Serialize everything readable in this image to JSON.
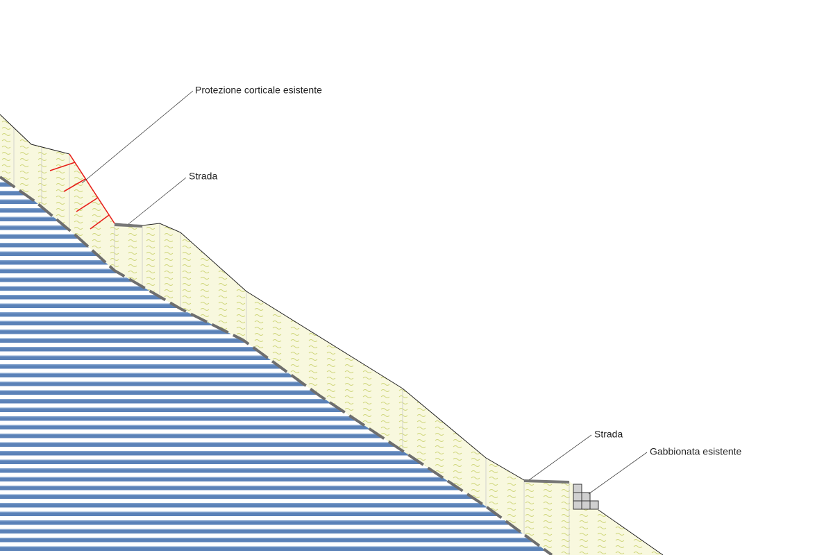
{
  "labels": {
    "protection": "Protezione corticale esistente",
    "road_upper": "Strada",
    "road_lower": "Strada",
    "gabion": "Gabbionata esistente"
  }
}
